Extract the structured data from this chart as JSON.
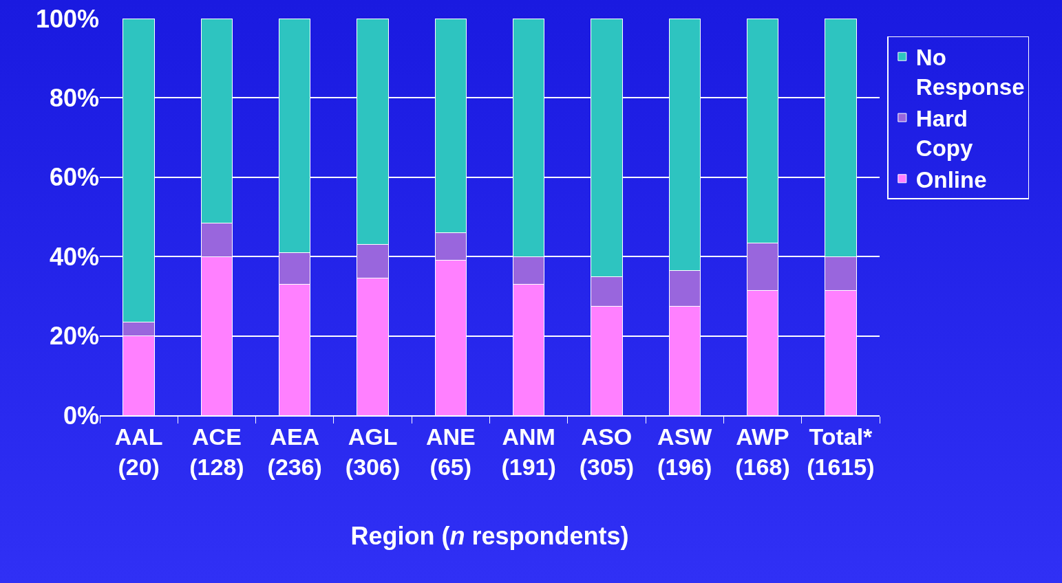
{
  "chart_data": {
    "type": "bar",
    "stacked": true,
    "xlabel": "Region (n respondents)",
    "categories": [
      "AAL (20)",
      "ACE (128)",
      "AEA (236)",
      "AGL (306)",
      "ANE (65)",
      "ANM (191)",
      "ASO (305)",
      "ASW (196)",
      "AWP (168)",
      "Total* (1615)"
    ],
    "series": [
      {
        "name": "Online",
        "color": "#ff80ff",
        "values": [
          20,
          40,
          33,
          34.5,
          39,
          33,
          27.5,
          27.5,
          31.5,
          31.5
        ]
      },
      {
        "name": "Hard Copy",
        "color": "#9966dd",
        "values": [
          3.5,
          8.5,
          8,
          8.5,
          7,
          7,
          7.5,
          9,
          12,
          8.5
        ]
      },
      {
        "name": "No Response",
        "color": "#2ec4c0",
        "values": [
          76.5,
          51.5,
          59,
          57,
          54,
          60,
          65,
          63.5,
          56.5,
          60
        ]
      }
    ],
    "ylim": [
      0,
      100
    ],
    "yticks": [
      {
        "value": 0,
        "label": "0%"
      },
      {
        "value": 20,
        "label": "20%"
      },
      {
        "value": 40,
        "label": "40%"
      },
      {
        "value": 60,
        "label": "60%"
      },
      {
        "value": 80,
        "label": "80%"
      },
      {
        "value": 100,
        "label": "100%"
      }
    ],
    "grid": "y",
    "legend": "right"
  }
}
